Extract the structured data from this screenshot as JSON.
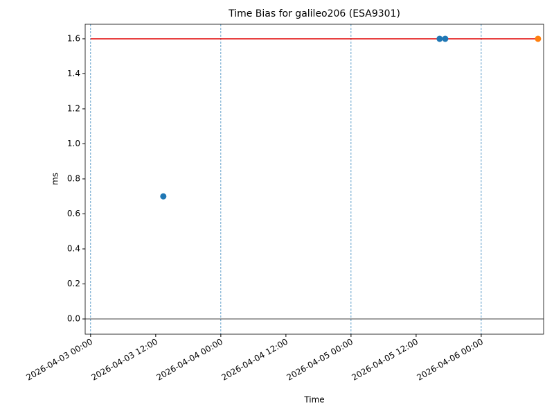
{
  "chart_data": {
    "type": "scatter",
    "title": "Time Bias for galileo206 (ESA9301)",
    "x_label": "Time",
    "y_label": "ms",
    "xlim": [
      "2026-04-02 23:00",
      "2026-04-06 11:30"
    ],
    "xticks": [
      "2026-04-03 00:00",
      "2026-04-03 12:00",
      "2026-04-04 00:00",
      "2026-04-04 12:00",
      "2026-04-05 00:00",
      "2026-04-05 12:00",
      "2026-04-06 00:00"
    ],
    "ylim": [
      -0.087,
      1.683
    ],
    "yticks": [
      {
        "value": 0,
        "label": "0.0"
      },
      0.2,
      0.4,
      0.6,
      0.8,
      {
        "value": 1,
        "label": "1.0"
      },
      1.2,
      1.4,
      1.6
    ],
    "vlines": [
      "2026-04-03 00:00",
      "2026-04-04 00:00",
      "2026-04-05 00:00",
      "2026-04-06 00:00"
    ],
    "vline_color": "#1f77b4",
    "hline": 0,
    "series": [
      {
        "type": "line",
        "color": "#e00000",
        "x": [
          "2026-04-03 00:00",
          "2026-04-06 10:28"
        ],
        "values": [
          1.6,
          1.6
        ]
      },
      {
        "type": "scatter",
        "color": "#1f77b4",
        "x": [
          "2026-04-03 13:24",
          "2026-04-05 16:20",
          "2026-04-05 17:22"
        ],
        "values": [
          0.7,
          1.6,
          1.6
        ]
      },
      {
        "type": "scatter",
        "color": "#ff7f0e",
        "x": [
          "2026-04-06 10:28"
        ],
        "values": [
          1.6
        ]
      }
    ]
  }
}
